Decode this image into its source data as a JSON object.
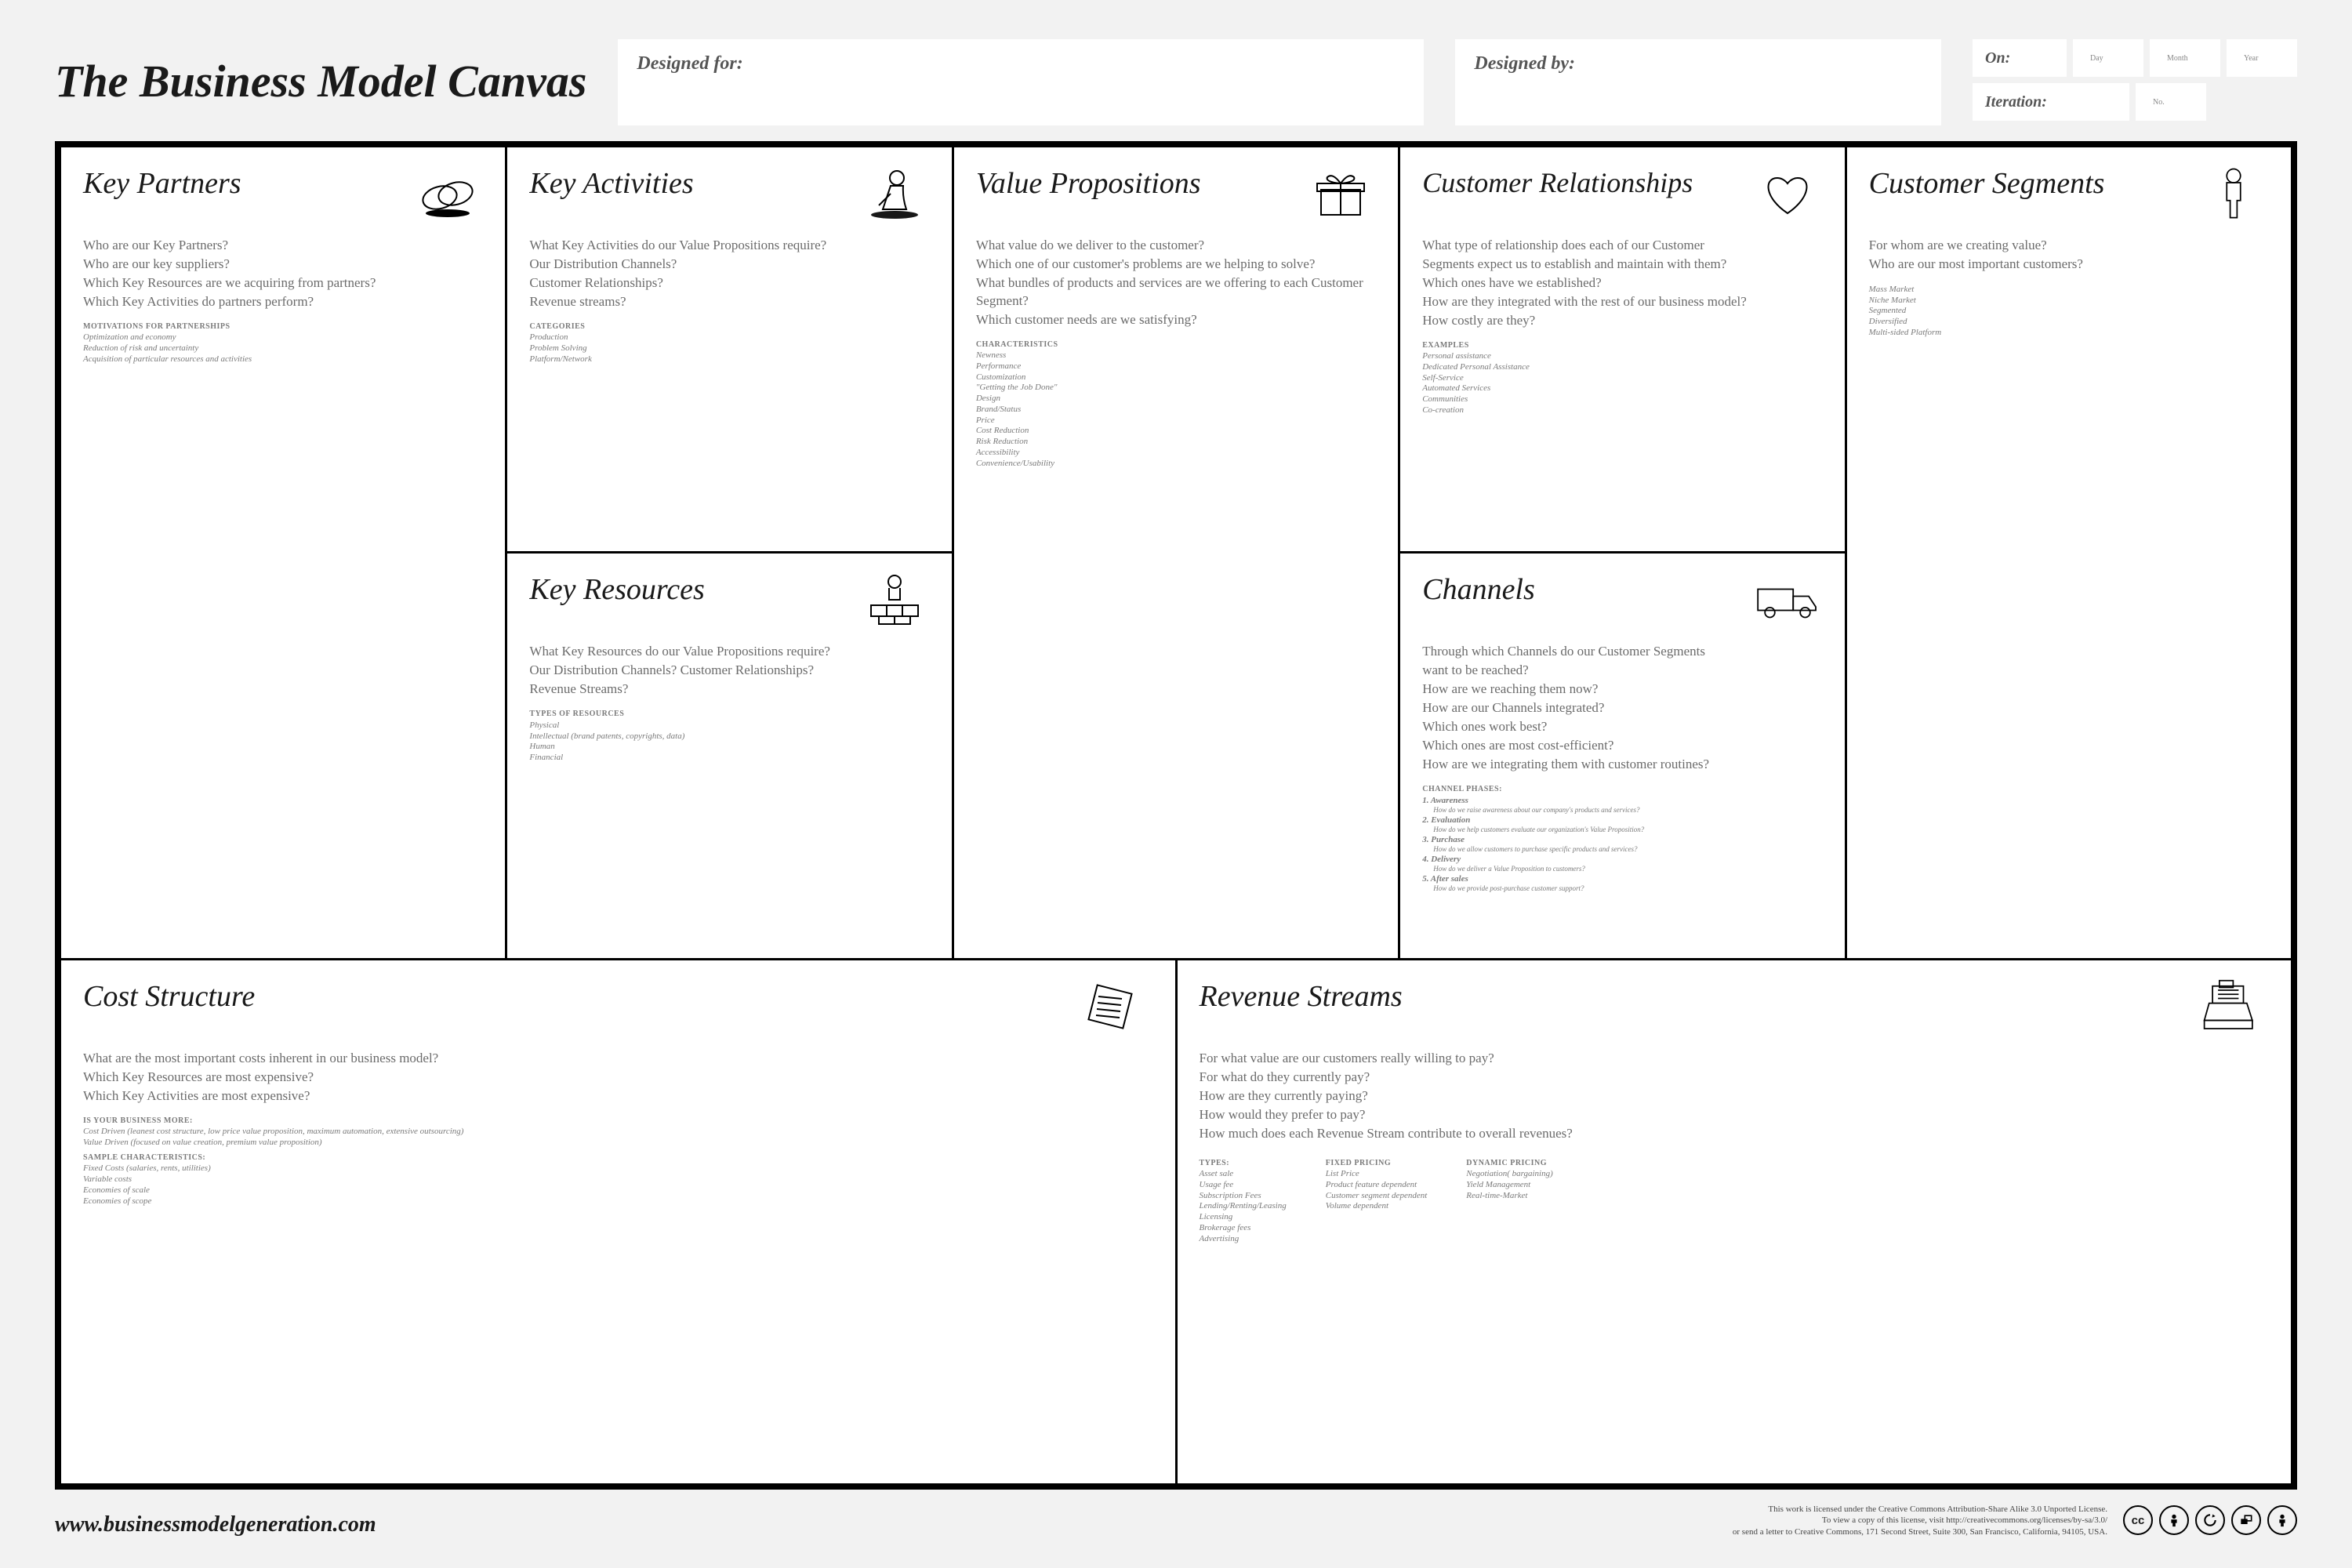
{
  "title": "The Business Model Canvas",
  "header": {
    "designed_for": "Designed for:",
    "designed_by": "Designed by:",
    "on": "On:",
    "on_sub": "Day   Month   Year",
    "iteration": "Iteration:",
    "iteration_sub": "No."
  },
  "blocks": {
    "key_partners": {
      "title": "Key Partners",
      "questions": [
        "Who are our Key Partners?",
        "Who are our key suppliers?",
        "Which Key Resources are we acquiring from partners?",
        "Which Key Activities do partners perform?"
      ],
      "hints_title": "MOTIVATIONS FOR PARTNERSHIPS",
      "hints": [
        "Optimization and economy",
        "Reduction of risk and uncertainty",
        "Acquisition of particular resources and activities"
      ]
    },
    "key_activities": {
      "title": "Key Activities",
      "questions": [
        "What Key Activities do our Value Propositions require?",
        "Our Distribution Channels?",
        "Customer Relationships?",
        "Revenue streams?"
      ],
      "hints_title": "CATEGORIES",
      "hints": [
        "Production",
        "Problem Solving",
        "Platform/Network"
      ]
    },
    "key_resources": {
      "title": "Key Resources",
      "questions": [
        "What Key Resources do our Value Propositions require?",
        "Our Distribution Channels? Customer Relationships?",
        "Revenue Streams?"
      ],
      "hints_title": "TYPES OF RESOURCES",
      "hints": [
        "Physical",
        "Intellectual (brand patents, copyrights, data)",
        "Human",
        "Financial"
      ]
    },
    "value_propositions": {
      "title": "Value Propositions",
      "questions": [
        "What value do we deliver to the customer?",
        "Which one of our customer's problems are we helping to solve?",
        "What bundles of products and services are we offering to each Customer Segment?",
        "Which customer needs are we satisfying?"
      ],
      "hints_title": "CHARACTERISTICS",
      "hints": [
        "Newness",
        "Performance",
        "Customization",
        "\"Getting the Job Done\"",
        "Design",
        "Brand/Status",
        "Price",
        "Cost Reduction",
        "Risk Reduction",
        "Accessibility",
        "Convenience/Usability"
      ]
    },
    "customer_relationships": {
      "title": "Customer Relationships",
      "questions": [
        "What type of relationship does each of our Customer",
        "Segments expect us to establish and maintain with them?",
        "Which ones have we established?",
        "How are they integrated with the rest of our business model?",
        "How costly are they?"
      ],
      "hints_title": "EXAMPLES",
      "hints": [
        "Personal assistance",
        "Dedicated Personal Assistance",
        "Self-Service",
        "Automated Services",
        "Communities",
        "Co-creation"
      ]
    },
    "channels": {
      "title": "Channels",
      "questions": [
        "Through which Channels do our Customer Segments",
        "want to be reached?",
        "How are we reaching them now?",
        "How are our Channels integrated?",
        "Which ones work best?",
        "Which ones are most cost-efficient?",
        "How are we integrating them with customer routines?"
      ],
      "hints_title": "CHANNEL PHASES:",
      "phases": [
        {
          "n": "1. Awareness",
          "s": "How do we raise awareness about our company's products and services?"
        },
        {
          "n": "2. Evaluation",
          "s": "How do we help customers evaluate our organization's Value Proposition?"
        },
        {
          "n": "3. Purchase",
          "s": "How do we allow customers to purchase specific products and services?"
        },
        {
          "n": "4. Delivery",
          "s": "How do we deliver a Value Proposition to customers?"
        },
        {
          "n": "5. After sales",
          "s": "How do we provide post-purchase customer support?"
        }
      ]
    },
    "customer_segments": {
      "title": "Customer Segments",
      "questions": [
        "For whom are we creating value?",
        "Who are our most important customers?"
      ],
      "hints": [
        "Mass Market",
        "Niche Market",
        "Segmented",
        "Diversified",
        "Multi-sided Platform"
      ]
    },
    "cost_structure": {
      "title": "Cost Structure",
      "questions": [
        "What are the most important costs inherent in our business model?",
        "Which Key Resources are most expensive?",
        "Which Key Activities are most expensive?"
      ],
      "hints_title1": "IS YOUR BUSINESS MORE:",
      "hints1": [
        "Cost Driven (leanest cost structure, low price value proposition, maximum automation, extensive outsourcing)",
        "Value Driven (focused on value creation, premium value proposition)"
      ],
      "hints_title2": "SAMPLE CHARACTERISTICS:",
      "hints2": [
        "Fixed Costs (salaries, rents, utilities)",
        "Variable costs",
        "Economies of scale",
        "Economies of scope"
      ]
    },
    "revenue_streams": {
      "title": "Revenue Streams",
      "questions": [
        "For what value are our customers really willing to pay?",
        "For what do they currently pay?",
        "How are they currently paying?",
        "How would they prefer to pay?",
        "How much does each Revenue Stream contribute to overall revenues?"
      ],
      "col1_title": "TYPES:",
      "col1": [
        "Asset sale",
        "Usage fee",
        "Subscription Fees",
        "Lending/Renting/Leasing",
        "Licensing",
        "Brokerage fees",
        "Advertising"
      ],
      "col2_title": "FIXED PRICING",
      "col2": [
        "List Price",
        "Product feature dependent",
        "Customer segment dependent",
        "Volume dependent"
      ],
      "col3_title": "DYNAMIC PRICING",
      "col3": [
        "Negotiation( bargaining)",
        "Yield Management",
        "Real-time-Market"
      ]
    }
  },
  "footer": {
    "website": "www.businessmodelgeneration.com",
    "license_line1": "This work is licensed under the Creative Commons Attribution-Share Alike 3.0 Unported License.",
    "license_line2": "To view a copy of this license, visit http://creativecommons.org/licenses/by-sa/3.0/",
    "license_line3": "or send a letter to Creative Commons, 171 Second Street, Suite 300, San Francisco, California, 94105, USA."
  },
  "colors": {
    "page_bg": "#f2f2f2",
    "canvas_bg": "#ffffff",
    "border": "#000000",
    "text": "#1a1a1a",
    "muted": "#6b6b6b"
  }
}
